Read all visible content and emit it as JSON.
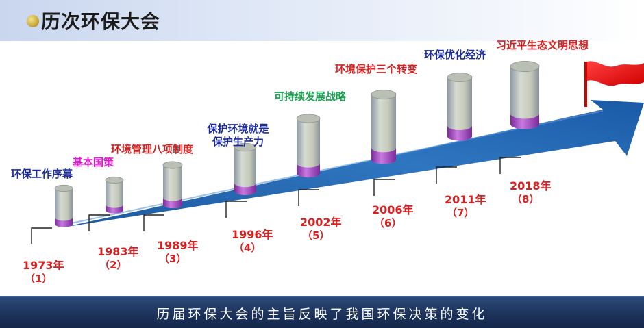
{
  "header": {
    "title": "历次环保大会"
  },
  "milestones": [
    {
      "label": "环保工作序幕",
      "year": "1973年",
      "index": "（1）",
      "label_color": "#1a2a9a"
    },
    {
      "label": "基本国策",
      "year": "1983年",
      "index": "（2）",
      "label_color": "#e01ad0"
    },
    {
      "label": "环境管理八项制度",
      "year": "1989年",
      "index": "（3）",
      "label_color": "#d82020"
    },
    {
      "label": "保护环境就是保护生产力",
      "year": "1996年",
      "index": "（4）",
      "label_color": "#1a2a9a"
    },
    {
      "label": "可持续发展战略",
      "year": "2002年",
      "index": "（5）",
      "label_color": "#1aa050"
    },
    {
      "label": "环境保护三个转变",
      "year": "2006年",
      "index": "（6）",
      "label_color": "#d82020"
    },
    {
      "label": "环保优化经济",
      "year": "2011年",
      "index": "（7）",
      "label_color": "#1a2a9a"
    },
    {
      "label": "习近平生态文明思想",
      "year": "2018年",
      "index": "（8）",
      "label_color": "#d82020"
    }
  ],
  "footer": {
    "text": "历届环保大会的主旨反映了我国环保决策的变化"
  }
}
